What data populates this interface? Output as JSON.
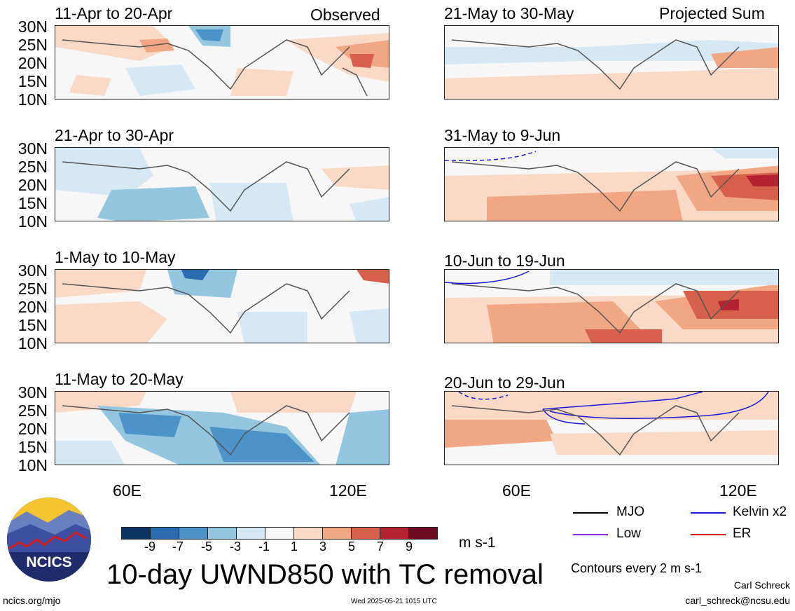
{
  "panels": [
    {
      "title": "11-Apr to 20-Apr",
      "tag": "Observed"
    },
    {
      "title": "21-May to 30-May",
      "tag": "Projected Sum"
    },
    {
      "title": "21-Apr to 30-Apr",
      "tag": ""
    },
    {
      "title": "31-May to 9-Jun",
      "tag": ""
    },
    {
      "title": "1-May to 10-May",
      "tag": ""
    },
    {
      "title": "10-Jun to 19-Jun",
      "tag": ""
    },
    {
      "title": "11-May to 20-May",
      "tag": ""
    },
    {
      "title": "20-Jun to 29-Jun",
      "tag": ""
    }
  ],
  "lat_labels": [
    "30N",
    "25N",
    "20N",
    "15N",
    "10N"
  ],
  "lon_labels": [
    "60E",
    "120E"
  ],
  "colorbar": {
    "colors": [
      "#0b3463",
      "#2b6cb0",
      "#4b93c8",
      "#95c6e0",
      "#d5e8f3",
      "#f7f7f7",
      "#fbd9c7",
      "#f2a784",
      "#d7604d",
      "#b42232",
      "#6b0a20"
    ],
    "ticks": [
      "-9",
      "-7",
      "-5",
      "-3",
      "-1",
      "1",
      "3",
      "5",
      "7",
      "9"
    ],
    "units": "m s-1"
  },
  "main_title": "10-day UWND850 with TC removal",
  "legend": {
    "mjo": "MJO",
    "kelvin": "Kelvin x2",
    "low": "Low",
    "er": "ER",
    "contours": "Contours every 2 m s-1",
    "colors": {
      "mjo": "#000000",
      "kelvin": "#1a1adb",
      "low": "#8a2be2",
      "er": "#d81b1b"
    }
  },
  "credits": {
    "author": "Carl Schreck",
    "email": "carl_schreck@ncsu.edu",
    "site": "ncics.org/mjo",
    "timestamp": "Wed 2025-05-21 1015 UTC",
    "logo_text": "NCICS"
  }
}
